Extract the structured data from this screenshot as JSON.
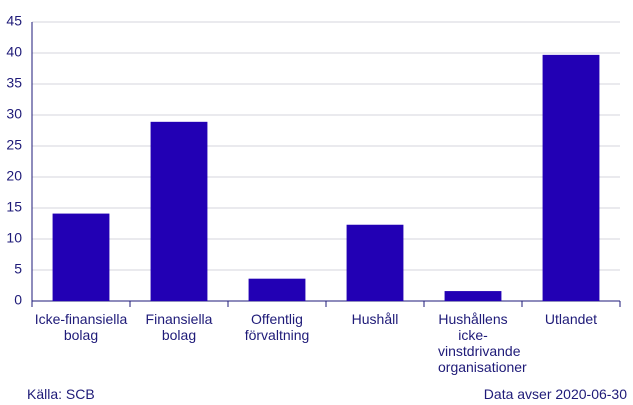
{
  "chart_data": {
    "type": "bar",
    "categories": [
      "Icke-finansiella bolag",
      "Finansiella bolag",
      "Offentlig förvaltning",
      "Hushåll",
      "Hushållens icke-vinstdrivande organisationer",
      "Utlandet"
    ],
    "values": [
      14.1,
      28.9,
      3.6,
      12.3,
      1.6,
      39.7
    ],
    "color": "#2200b4",
    "ylim": [
      0,
      45
    ],
    "yticks": [
      0,
      5,
      10,
      15,
      20,
      25,
      30,
      35,
      40,
      45
    ],
    "grid": true,
    "source": "Källa: SCB",
    "note": "Data avser 2020-06-30"
  }
}
